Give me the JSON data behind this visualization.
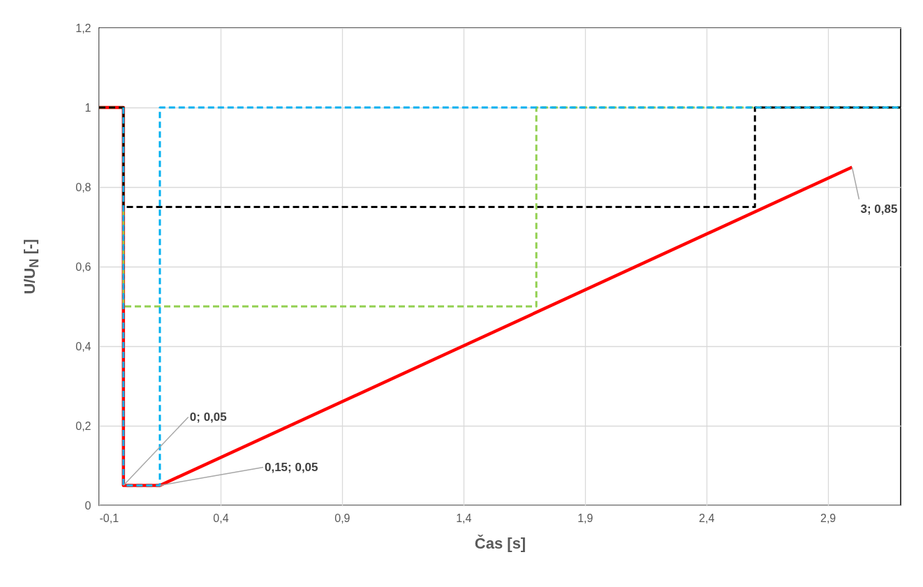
{
  "chart_data": {
    "type": "line",
    "xlabel": "Čas [s]",
    "ylabel": "U/U$_{N}$ [-]",
    "xlim": [
      -0.1,
      3.2
    ],
    "ylim": [
      0,
      1.2
    ],
    "xticks": [
      {
        "value": -0.1,
        "label": "-0,1"
      },
      {
        "value": 0.4,
        "label": "0,4"
      },
      {
        "value": 0.9,
        "label": "0,9"
      },
      {
        "value": 1.4,
        "label": "1,4"
      },
      {
        "value": 1.9,
        "label": "1,9"
      },
      {
        "value": 2.4,
        "label": "2,4"
      },
      {
        "value": 2.9,
        "label": "2,9"
      }
    ],
    "yticks": [
      0,
      {
        "value": 0.2,
        "label": "0,2"
      },
      {
        "value": 0.4,
        "label": "0,4"
      },
      {
        "value": 0.6,
        "label": "0,6"
      },
      {
        "value": 0.8,
        "label": "0,8"
      },
      1,
      {
        "value": 1.2,
        "label": "1,2"
      }
    ],
    "grid": true,
    "series": [
      {
        "color": "#ff0000",
        "line_style": "solid",
        "x": [
          -0.1,
          0,
          0,
          0.15,
          3
        ],
        "values": [
          1,
          1,
          0.05,
          0.05,
          0.85
        ]
      },
      {
        "color": "#92d050",
        "line_style": "dashed",
        "x": [
          -0.1,
          0,
          0,
          1.7,
          1.7,
          3.2
        ],
        "values": [
          1,
          1,
          0.5,
          0.5,
          1,
          1
        ]
      },
      {
        "color": "#000000",
        "line_style": "dashed",
        "x": [
          -0.1,
          0,
          0,
          2.6,
          2.6,
          3.2
        ],
        "values": [
          1,
          1,
          0.75,
          0.75,
          1,
          1
        ]
      },
      {
        "color": "#00b0f0",
        "line_style": "dashed",
        "x": [
          0,
          0,
          0.15,
          0.15,
          3.2
        ],
        "values": [
          1,
          0.05,
          0.05,
          1,
          1
        ]
      }
    ],
    "annotations": [
      {
        "text": "0; 0,05",
        "x": 0,
        "y": 0.05
      },
      {
        "text": "0,15; 0,05",
        "x": 0.15,
        "y": 0.05
      },
      {
        "text": "3; 0,85",
        "x": 3,
        "y": 0.85
      }
    ]
  }
}
